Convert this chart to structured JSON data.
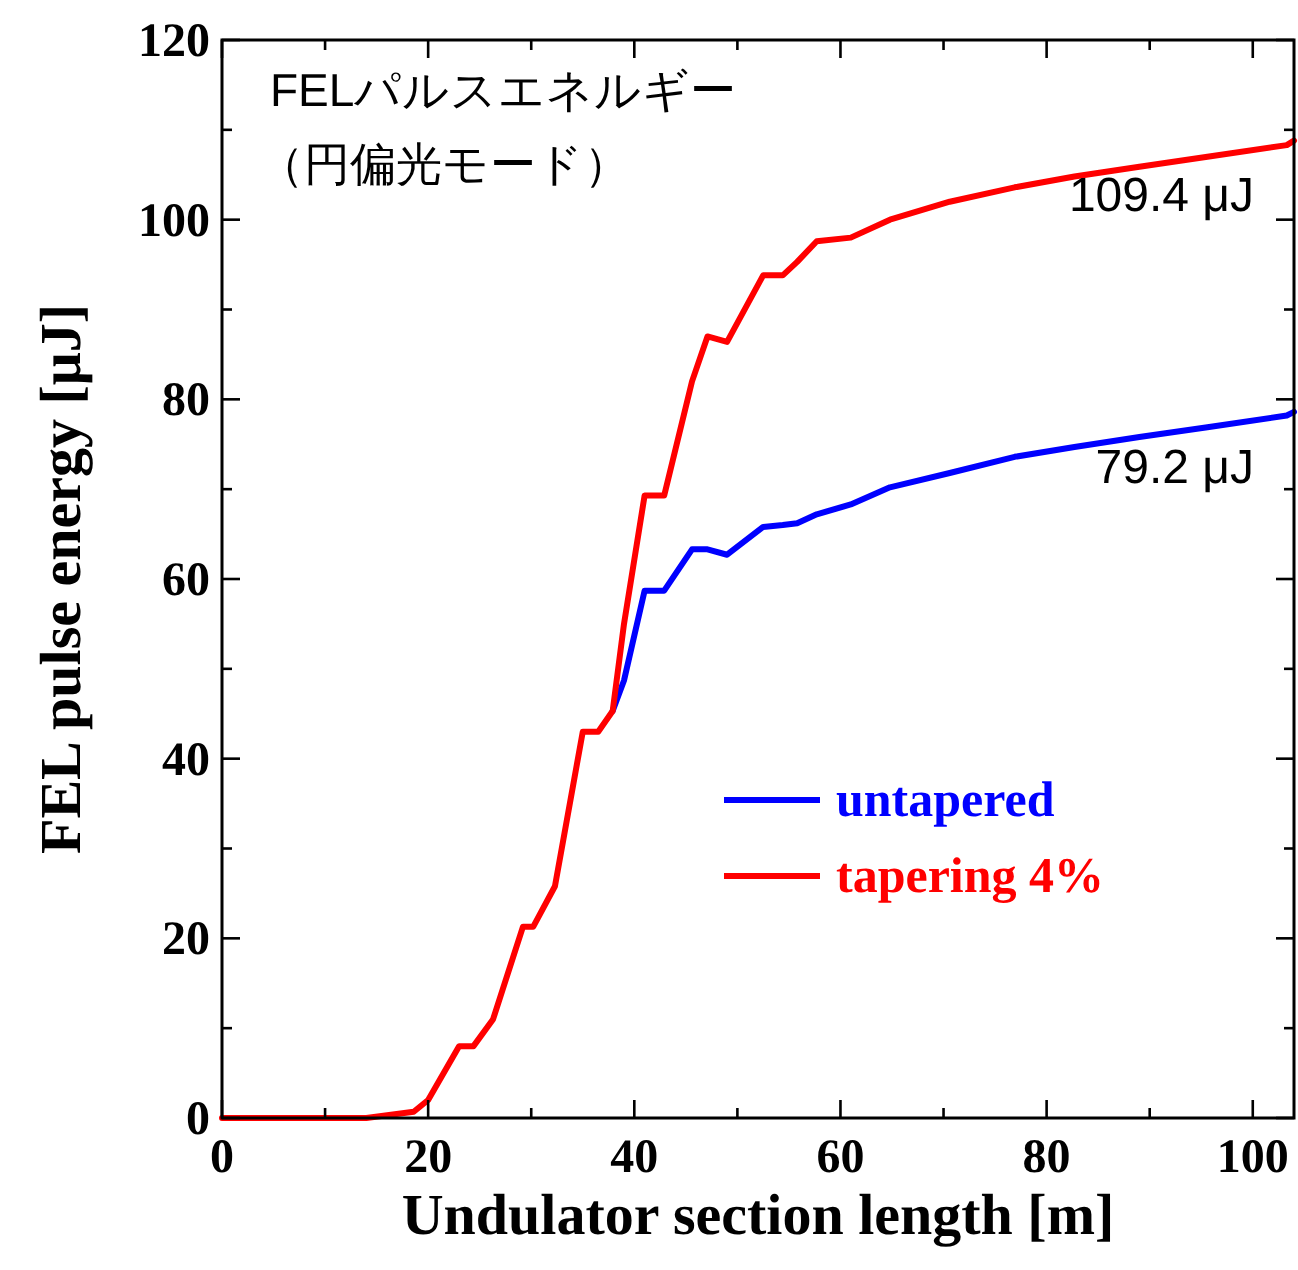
{
  "chart_data": {
    "type": "line",
    "title": "FELパルスエネルギー",
    "subtitle": "（円偏光モード）",
    "xlabel": "Undulator section length [m]",
    "ylabel": "FEL pulse energy [μJ]",
    "x": [
      0,
      14,
      18.6,
      20,
      23,
      24.4,
      26.3,
      29.2,
      30.2,
      32.3,
      35,
      36.5,
      37.9,
      39,
      41,
      42.9,
      45.6,
      47.1,
      49,
      52.5,
      54.4,
      55.8,
      57.7,
      61,
      64.8,
      70.6,
      76.9,
      82.7,
      89,
      95.6,
      103.3,
      104
    ],
    "series": [
      {
        "name": "untapered",
        "color": "#0000ff",
        "values": [
          null,
          null,
          null,
          null,
          null,
          null,
          null,
          null,
          null,
          null,
          null,
          null,
          45.3,
          48.7,
          58.7,
          58.7,
          63.3,
          63.3,
          62.7,
          65.8,
          66,
          66.2,
          67.2,
          68.3,
          70.2,
          71.8,
          73.6,
          74.7,
          75.8,
          76.9,
          78.2,
          78.6
        ]
      },
      {
        "name": "tapering 4%",
        "color": "#ff0000",
        "values": [
          0,
          0,
          0.7,
          2,
          8,
          8,
          11,
          21.3,
          21.3,
          25.8,
          43,
          43,
          45.3,
          55,
          69.3,
          69.3,
          82,
          87,
          86.4,
          93.8,
          93.8,
          95.3,
          97.6,
          98,
          100,
          102,
          103.6,
          104.8,
          105.9,
          107,
          108.3,
          108.8
        ]
      }
    ],
    "xlim": [
      0,
      104
    ],
    "ylim": [
      0,
      120
    ],
    "xticks": [
      0,
      {
        "value": 10,
        "label": null
      },
      20,
      {
        "value": 30,
        "label": null
      },
      40,
      {
        "value": 50,
        "label": null
      },
      60,
      {
        "value": 70,
        "label": null
      },
      80,
      {
        "value": 90,
        "label": null
      },
      100
    ],
    "yticks": [
      0,
      {
        "value": 10,
        "label": null
      },
      20,
      {
        "value": 30,
        "label": null
      },
      40,
      {
        "value": 50,
        "label": null
      },
      60,
      {
        "value": 70,
        "label": null
      },
      80,
      {
        "value": 90,
        "label": null
      },
      100,
      {
        "value": 110,
        "label": null
      },
      120
    ],
    "annotations": [
      {
        "text": "109.4 μJ",
        "x": 104,
        "y": 109.4
      },
      {
        "text": "79.2 μJ",
        "x": 104,
        "y": 79.2
      }
    ],
    "legend": "right",
    "grid": false,
    "marker": "none",
    "line_style": "solid"
  }
}
